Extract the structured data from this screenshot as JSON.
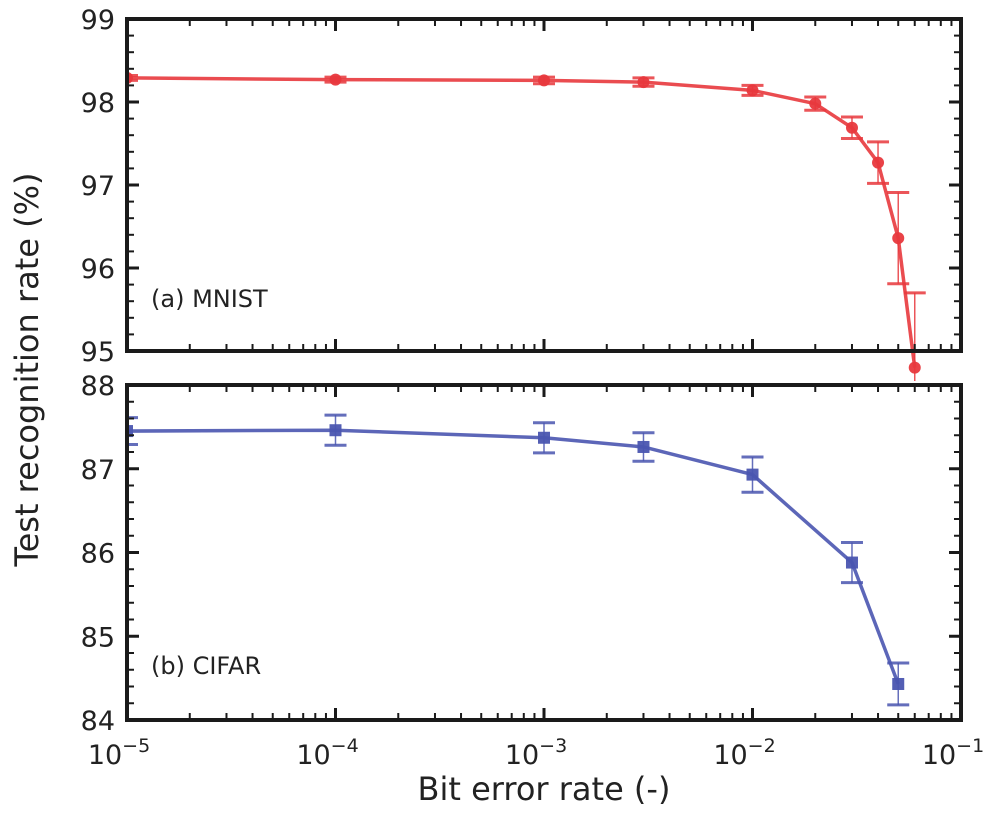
{
  "chart_data": [
    {
      "type": "line",
      "panel_label": "(a) MNIST",
      "xscale": "log",
      "xlim": [
        1e-05,
        0.1
      ],
      "ylim": [
        95,
        99
      ],
      "yticks": [
        95,
        96,
        97,
        98,
        99
      ],
      "ytick_labels": [
        "95",
        "96",
        "97",
        "98",
        "99"
      ],
      "marker": "circle",
      "color": "#e8383d",
      "series": [
        {
          "name": "MNIST",
          "x": [
            1e-05,
            0.0001,
            0.001,
            0.003,
            0.01,
            0.02,
            0.03,
            0.04,
            0.05,
            0.06
          ],
          "y": [
            98.29,
            98.27,
            98.26,
            98.24,
            98.14,
            97.98,
            97.69,
            97.27,
            96.36,
            94.8
          ],
          "err": [
            0.03,
            0.03,
            0.04,
            0.05,
            0.06,
            0.08,
            0.13,
            0.25,
            0.55,
            0.9
          ]
        }
      ]
    },
    {
      "type": "line",
      "panel_label": "(b) CIFAR",
      "xscale": "log",
      "xlim": [
        1e-05,
        0.1
      ],
      "ylim": [
        84,
        88
      ],
      "yticks": [
        84,
        85,
        86,
        87,
        88
      ],
      "ytick_labels": [
        "84",
        "85",
        "86",
        "87",
        "88"
      ],
      "marker": "square",
      "color": "#4a55b0",
      "series": [
        {
          "name": "CIFAR",
          "x": [
            1e-05,
            0.0001,
            0.001,
            0.003,
            0.01,
            0.03,
            0.05
          ],
          "y": [
            87.45,
            87.46,
            87.37,
            87.26,
            86.93,
            85.88,
            84.43
          ],
          "err": [
            0.16,
            0.18,
            0.18,
            0.17,
            0.21,
            0.24,
            0.25
          ]
        }
      ]
    }
  ],
  "shared": {
    "xlabel": "Bit error rate (-)",
    "ylabel": "Test recognition rate (%)",
    "xticks": [
      1e-05,
      0.0001,
      0.001,
      0.01,
      0.1
    ],
    "xtick_labels": [
      {
        "base": "10",
        "exp": "−5"
      },
      {
        "base": "10",
        "exp": "−4"
      },
      {
        "base": "10",
        "exp": "−3"
      },
      {
        "base": "10",
        "exp": "−2"
      },
      {
        "base": "10",
        "exp": "−1"
      }
    ],
    "grid": false,
    "legend": "none"
  }
}
